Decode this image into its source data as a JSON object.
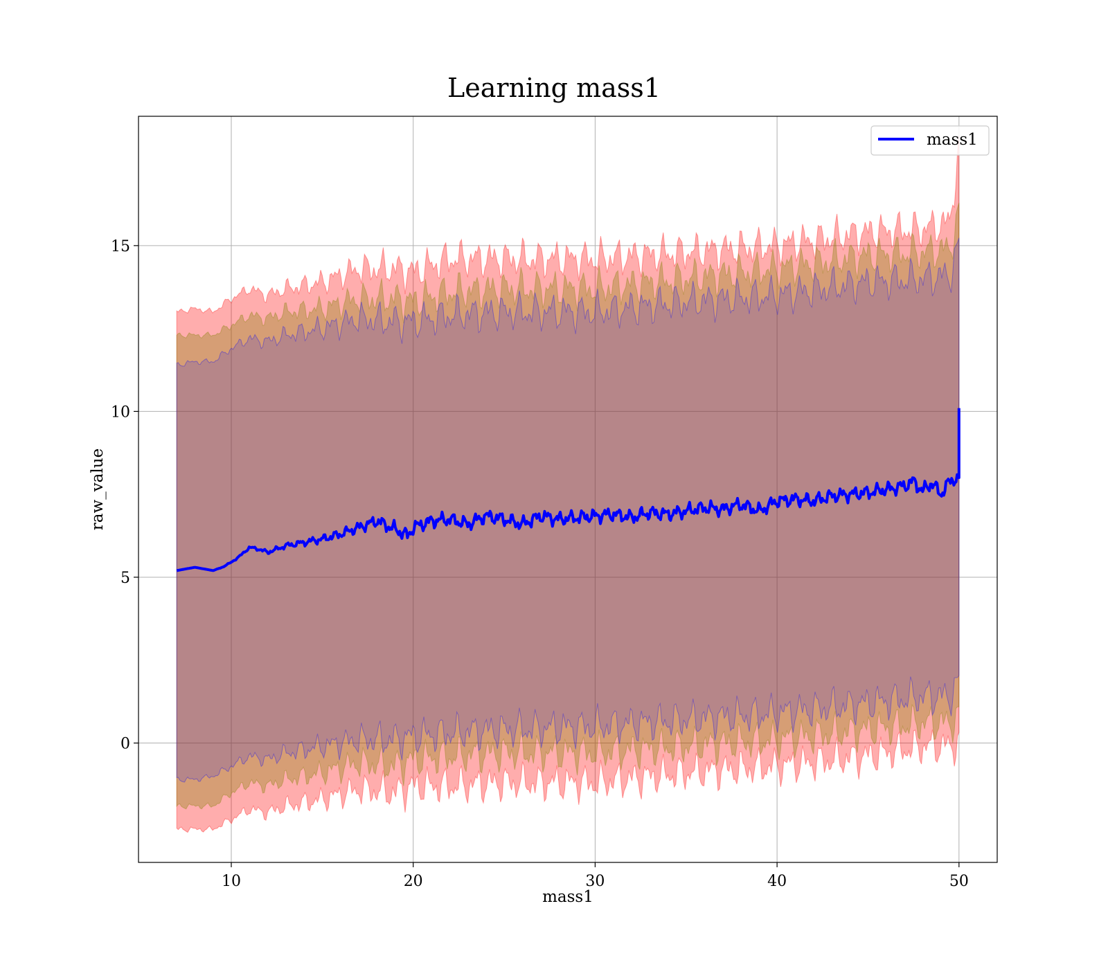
{
  "chart_data": {
    "type": "line",
    "title": "Learning mass1",
    "xlabel": "mass1",
    "ylabel": "raw_value",
    "xlim": [
      4.9,
      52.1
    ],
    "ylim": [
      -3.6,
      18.9
    ],
    "xticks": [
      10,
      20,
      30,
      40,
      50
    ],
    "yticks": [
      0,
      5,
      10,
      15
    ],
    "grid": true,
    "legend": {
      "placement": "top-right",
      "entries": [
        "mass1"
      ]
    },
    "series": [
      {
        "name": "mass1",
        "color": "#0000ff",
        "x": [
          7.0,
          8.0,
          8.5,
          9.0,
          9.5,
          10.0,
          10.5,
          11.0,
          11.5,
          12.0,
          12.5,
          13.0,
          14.0,
          15.0,
          16.0,
          17.0,
          18.0,
          19.0,
          19.7,
          20.0,
          21.0,
          22.0,
          23.0,
          24.0,
          25.0,
          26.0,
          27.0,
          28.0,
          29.0,
          30.0,
          31.0,
          32.0,
          33.0,
          34.0,
          35.0,
          36.0,
          37.0,
          38.0,
          39.0,
          40.0,
          41.0,
          42.0,
          43.0,
          44.0,
          45.0,
          46.0,
          47.0,
          47.5,
          48.0,
          48.5,
          49.0,
          49.5,
          49.9,
          50.0
        ],
        "y": [
          5.2,
          5.3,
          5.25,
          5.2,
          5.3,
          5.45,
          5.65,
          5.9,
          5.85,
          5.75,
          5.85,
          5.95,
          6.05,
          6.15,
          6.3,
          6.5,
          6.7,
          6.45,
          6.25,
          6.5,
          6.7,
          6.75,
          6.6,
          6.85,
          6.75,
          6.6,
          6.85,
          6.75,
          6.8,
          6.85,
          6.9,
          6.8,
          6.95,
          6.9,
          7.0,
          7.1,
          7.05,
          7.2,
          7.0,
          7.3,
          7.35,
          7.3,
          7.45,
          7.5,
          7.55,
          7.65,
          7.75,
          7.9,
          7.6,
          7.85,
          7.5,
          7.9,
          8.0,
          10.1
        ]
      }
    ],
    "bands": [
      {
        "color": "#ff0000",
        "opacity": 0.32,
        "x": [
          7.0,
          8.0,
          9.0,
          10.0,
          11.0,
          12.0,
          13.0,
          15.0,
          17.0,
          19.0,
          20.0,
          22.0,
          25.0,
          30.0,
          35.0,
          40.0,
          45.0,
          48.0,
          49.5,
          50.0
        ],
        "upper": [
          13.0,
          13.1,
          13.0,
          13.4,
          13.7,
          13.5,
          13.7,
          13.9,
          14.3,
          14.3,
          14.2,
          14.6,
          14.6,
          14.6,
          14.8,
          15.0,
          15.4,
          15.5,
          15.7,
          18.0
        ],
        "lower": [
          -2.6,
          -2.6,
          -2.6,
          -2.3,
          -2.0,
          -2.1,
          -1.9,
          -1.7,
          -1.4,
          -1.5,
          -1.3,
          -1.3,
          -1.2,
          -1.2,
          -0.9,
          -0.7,
          -0.4,
          -0.1,
          -0.1,
          0.0
        ]
      },
      {
        "color": "#808000",
        "opacity": 0.32,
        "x": [
          7.0,
          8.0,
          9.0,
          10.0,
          11.0,
          12.0,
          13.0,
          15.0,
          17.0,
          19.0,
          20.0,
          22.0,
          25.0,
          30.0,
          35.0,
          40.0,
          45.0,
          48.0,
          49.5,
          50.0
        ],
        "upper": [
          12.3,
          12.3,
          12.3,
          12.6,
          12.9,
          12.8,
          13.0,
          13.1,
          13.4,
          13.4,
          13.3,
          13.6,
          13.7,
          13.7,
          14.0,
          14.3,
          14.7,
          14.8,
          14.9,
          16.0
        ],
        "lower": [
          -1.9,
          -1.9,
          -1.9,
          -1.5,
          -1.2,
          -1.3,
          -1.1,
          -0.9,
          -0.6,
          -0.7,
          -0.5,
          -0.4,
          -0.3,
          -0.3,
          -0.1,
          0.1,
          0.4,
          0.6,
          0.6,
          0.8
        ]
      },
      {
        "color": "#0000ff",
        "opacity": 0.15,
        "x": [
          7.0,
          8.0,
          9.0,
          10.0,
          11.0,
          12.0,
          13.0,
          15.0,
          17.0,
          19.0,
          20.0,
          22.0,
          25.0,
          30.0,
          35.0,
          40.0,
          45.0,
          48.0,
          49.5,
          50.0
        ],
        "upper": [
          11.4,
          11.5,
          11.5,
          11.9,
          12.2,
          12.1,
          12.3,
          12.5,
          12.8,
          12.7,
          12.7,
          12.9,
          13.0,
          13.0,
          13.3,
          13.5,
          13.9,
          14.0,
          14.1,
          15.0
        ],
        "lower": [
          -1.1,
          -1.1,
          -1.0,
          -0.7,
          -0.4,
          -0.5,
          -0.3,
          -0.1,
          0.1,
          0.1,
          0.2,
          0.3,
          0.4,
          0.5,
          0.7,
          0.9,
          1.2,
          1.4,
          1.4,
          1.8
        ]
      }
    ]
  }
}
